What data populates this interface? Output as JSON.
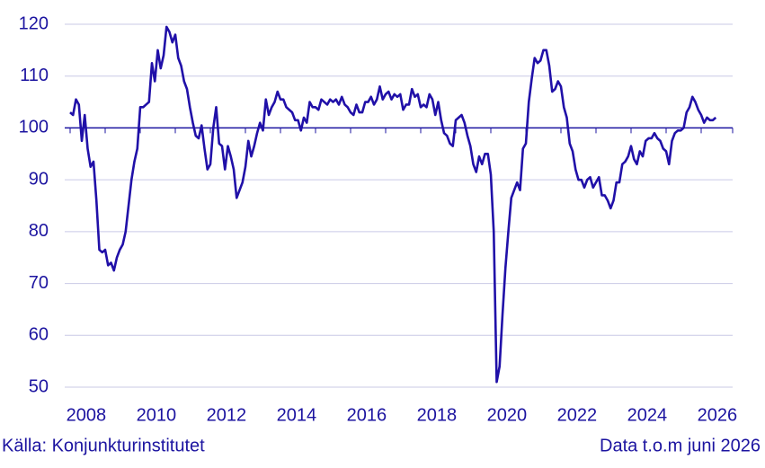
{
  "chart_data": {
    "type": "line",
    "categories": [
      "2008",
      null,
      null,
      null,
      null,
      null,
      null,
      null,
      null,
      null,
      null,
      null,
      null,
      null,
      null,
      null,
      null,
      null,
      null,
      null,
      null,
      null,
      null,
      null,
      "2010",
      null,
      null,
      null,
      null,
      null,
      null,
      null,
      null,
      null,
      null,
      null,
      null,
      null,
      null,
      null,
      null,
      null,
      null,
      null,
      null,
      null,
      null,
      null,
      "2012",
      null,
      null,
      null,
      null,
      null,
      null,
      null,
      null,
      null,
      null,
      null,
      null,
      null,
      null,
      null,
      null,
      null,
      null,
      null,
      null,
      null,
      null,
      null,
      "2014",
      null,
      null,
      null,
      null,
      null,
      null,
      null,
      null,
      null,
      null,
      null,
      null,
      null,
      null,
      null,
      null,
      null,
      null,
      null,
      null,
      null,
      null,
      null,
      "2016",
      null,
      null,
      null,
      null,
      null,
      null,
      null,
      null,
      null,
      null,
      null,
      null,
      null,
      null,
      null,
      null,
      null,
      null,
      null,
      null,
      null,
      null,
      null,
      "2018",
      null,
      null,
      null,
      null,
      null,
      null,
      null,
      null,
      null,
      null,
      null,
      null,
      null,
      null,
      null,
      null,
      null,
      null,
      null,
      null,
      null,
      null,
      null,
      "2020",
      null,
      null,
      null,
      null,
      null,
      null,
      null,
      null,
      null,
      null,
      null,
      null,
      null,
      null,
      null,
      null,
      null,
      null,
      null,
      null,
      null,
      null,
      null,
      "2022",
      null,
      null,
      null,
      null,
      null,
      null,
      null,
      null,
      null,
      null,
      null,
      null,
      null,
      null,
      null,
      null,
      null,
      null,
      null,
      null,
      null,
      null,
      null,
      "2024",
      null,
      null,
      null,
      null,
      null,
      null,
      null,
      null,
      null,
      null,
      null,
      null,
      null,
      null,
      null,
      null,
      null,
      null,
      null,
      null,
      null,
      null,
      null,
      "2026",
      null,
      null,
      null,
      null,
      null
    ],
    "series": [
      {
        "color": "#2010a8",
        "values": [
          103,
          102.5,
          105.5,
          104.5,
          97.5,
          102.5,
          96,
          92.5,
          93.5,
          86,
          76.5,
          76,
          76.5,
          73.5,
          74,
          72.5,
          75,
          76.5,
          77.5,
          80,
          85,
          90,
          93.5,
          96,
          104,
          104,
          104.5,
          105,
          112.5,
          109,
          115,
          111.5,
          114,
          119.5,
          118.5,
          116.5,
          118,
          113.5,
          112,
          109,
          107.5,
          104,
          101,
          98.5,
          98,
          100.5,
          96,
          92,
          93,
          100,
          104,
          97,
          96.5,
          92,
          96.5,
          94.5,
          92,
          86.5,
          88,
          89.5,
          92.5,
          97.5,
          94.5,
          96.5,
          99,
          101,
          99.5,
          105.5,
          102.5,
          104,
          105,
          107,
          105.5,
          105.5,
          104,
          103.5,
          103,
          101.5,
          101.5,
          99.5,
          102,
          101,
          105,
          104,
          104,
          103.5,
          105.5,
          105,
          104.5,
          105.5,
          105,
          105.5,
          104.5,
          106,
          104.5,
          104,
          103,
          102.5,
          104.5,
          103,
          103,
          105,
          105,
          106,
          104.5,
          105.5,
          108,
          105.5,
          106.5,
          107,
          105.5,
          106.5,
          106,
          106.5,
          103.5,
          104.5,
          104.5,
          107.5,
          106,
          106.5,
          104,
          104.5,
          104,
          106.5,
          105.5,
          102.5,
          105,
          101.5,
          99,
          98.5,
          97,
          96.5,
          101.5,
          102,
          102.5,
          101,
          98.5,
          96.5,
          93,
          91.5,
          94.5,
          93,
          95,
          95,
          91,
          80,
          51,
          54,
          64,
          73,
          80,
          86.5,
          88,
          89.5,
          88,
          96,
          97,
          105,
          109.5,
          113.5,
          112.5,
          113,
          115,
          115,
          112,
          107,
          107.5,
          109,
          108,
          104,
          102,
          97,
          95.5,
          92,
          90,
          90,
          88.5,
          90,
          90.5,
          88.5,
          89.5,
          90.5,
          87,
          87,
          86,
          84.5,
          86,
          89.5,
          89.5,
          93,
          93.5,
          94.5,
          96.5,
          94,
          93,
          95.5,
          94.5,
          97.5,
          98,
          98,
          99,
          98,
          97.5,
          96,
          95.5,
          93,
          97.5,
          99,
          99.5,
          99.5,
          100,
          103,
          104,
          106,
          105,
          103.5,
          102.5,
          101,
          102,
          101.5,
          101.5,
          102
        ]
      }
    ],
    "ylim": [
      50,
      120
    ],
    "yticks": [
      50,
      60,
      70,
      80,
      90,
      100,
      110,
      120
    ],
    "grid": true,
    "reference_line": 100,
    "source": "Källa: Konjunkturinstitutet",
    "note": "Data t.o.m juni 2026"
  }
}
